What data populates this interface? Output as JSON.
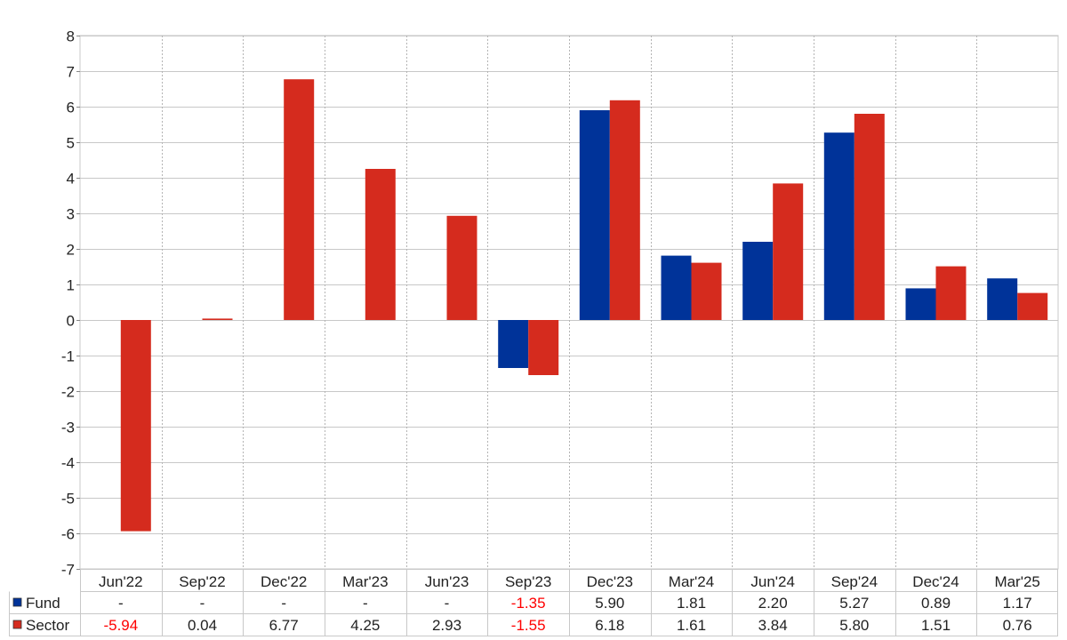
{
  "chart_data": {
    "type": "bar",
    "categories": [
      "Jun'22",
      "Sep'22",
      "Dec'22",
      "Mar'23",
      "Jun'23",
      "Sep'23",
      "Dec'23",
      "Mar'24",
      "Jun'24",
      "Sep'24",
      "Dec'24",
      "Mar'25"
    ],
    "series": [
      {
        "name": "Fund",
        "color": "#003399",
        "values": [
          null,
          null,
          null,
          null,
          null,
          -1.35,
          5.9,
          1.81,
          2.2,
          5.27,
          0.89,
          1.17
        ],
        "labels": [
          "-",
          "-",
          "-",
          "-",
          "-",
          "-1.35",
          "5.90",
          "1.81",
          "2.20",
          "5.27",
          "0.89",
          "1.17"
        ]
      },
      {
        "name": "Sector",
        "color": "#d52b1e",
        "values": [
          -5.94,
          0.04,
          6.77,
          4.25,
          2.93,
          -1.55,
          6.18,
          1.61,
          3.84,
          5.8,
          1.51,
          0.76
        ],
        "labels": [
          "-5.94",
          "0.04",
          "6.77",
          "4.25",
          "2.93",
          "-1.55",
          "6.18",
          "1.61",
          "3.84",
          "5.80",
          "1.51",
          "0.76"
        ]
      }
    ],
    "ylim": [
      -7,
      8
    ],
    "yticks": [
      "8",
      "7",
      "6",
      "5",
      "4",
      "3",
      "2",
      "1",
      "0",
      "-1",
      "-2",
      "-3",
      "-4",
      "-5",
      "-6",
      "-7"
    ],
    "negative_label_color": "#ff0000",
    "grid": true,
    "legend": "data table below chart"
  }
}
